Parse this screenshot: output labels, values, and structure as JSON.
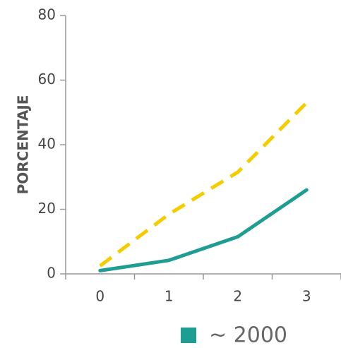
{
  "chart_data": {
    "type": "line",
    "title": "",
    "xlabel": "",
    "ylabel": "PORCENTAJE",
    "x": [
      0,
      1,
      2,
      3
    ],
    "x_tick_labels": [
      "0",
      "1",
      "2",
      "3"
    ],
    "y_ticks": [
      0,
      20,
      40,
      60,
      80
    ],
    "y_tick_labels": [
      "0",
      "20",
      "40",
      "60",
      "80"
    ],
    "xlim": [
      -0.5,
      3.5
    ],
    "ylim": [
      0,
      80
    ],
    "grid": false,
    "legend_position": "bottom",
    "series": [
      {
        "name": "~ 2000",
        "values": [
          1,
          4.2,
          11.5,
          26
        ],
        "color": "#1e9e92",
        "style": "solid"
      },
      {
        "values": [
          2.5,
          18.5,
          31.5,
          53
        ],
        "color": "#f5cc00",
        "style": "dashed"
      }
    ]
  }
}
